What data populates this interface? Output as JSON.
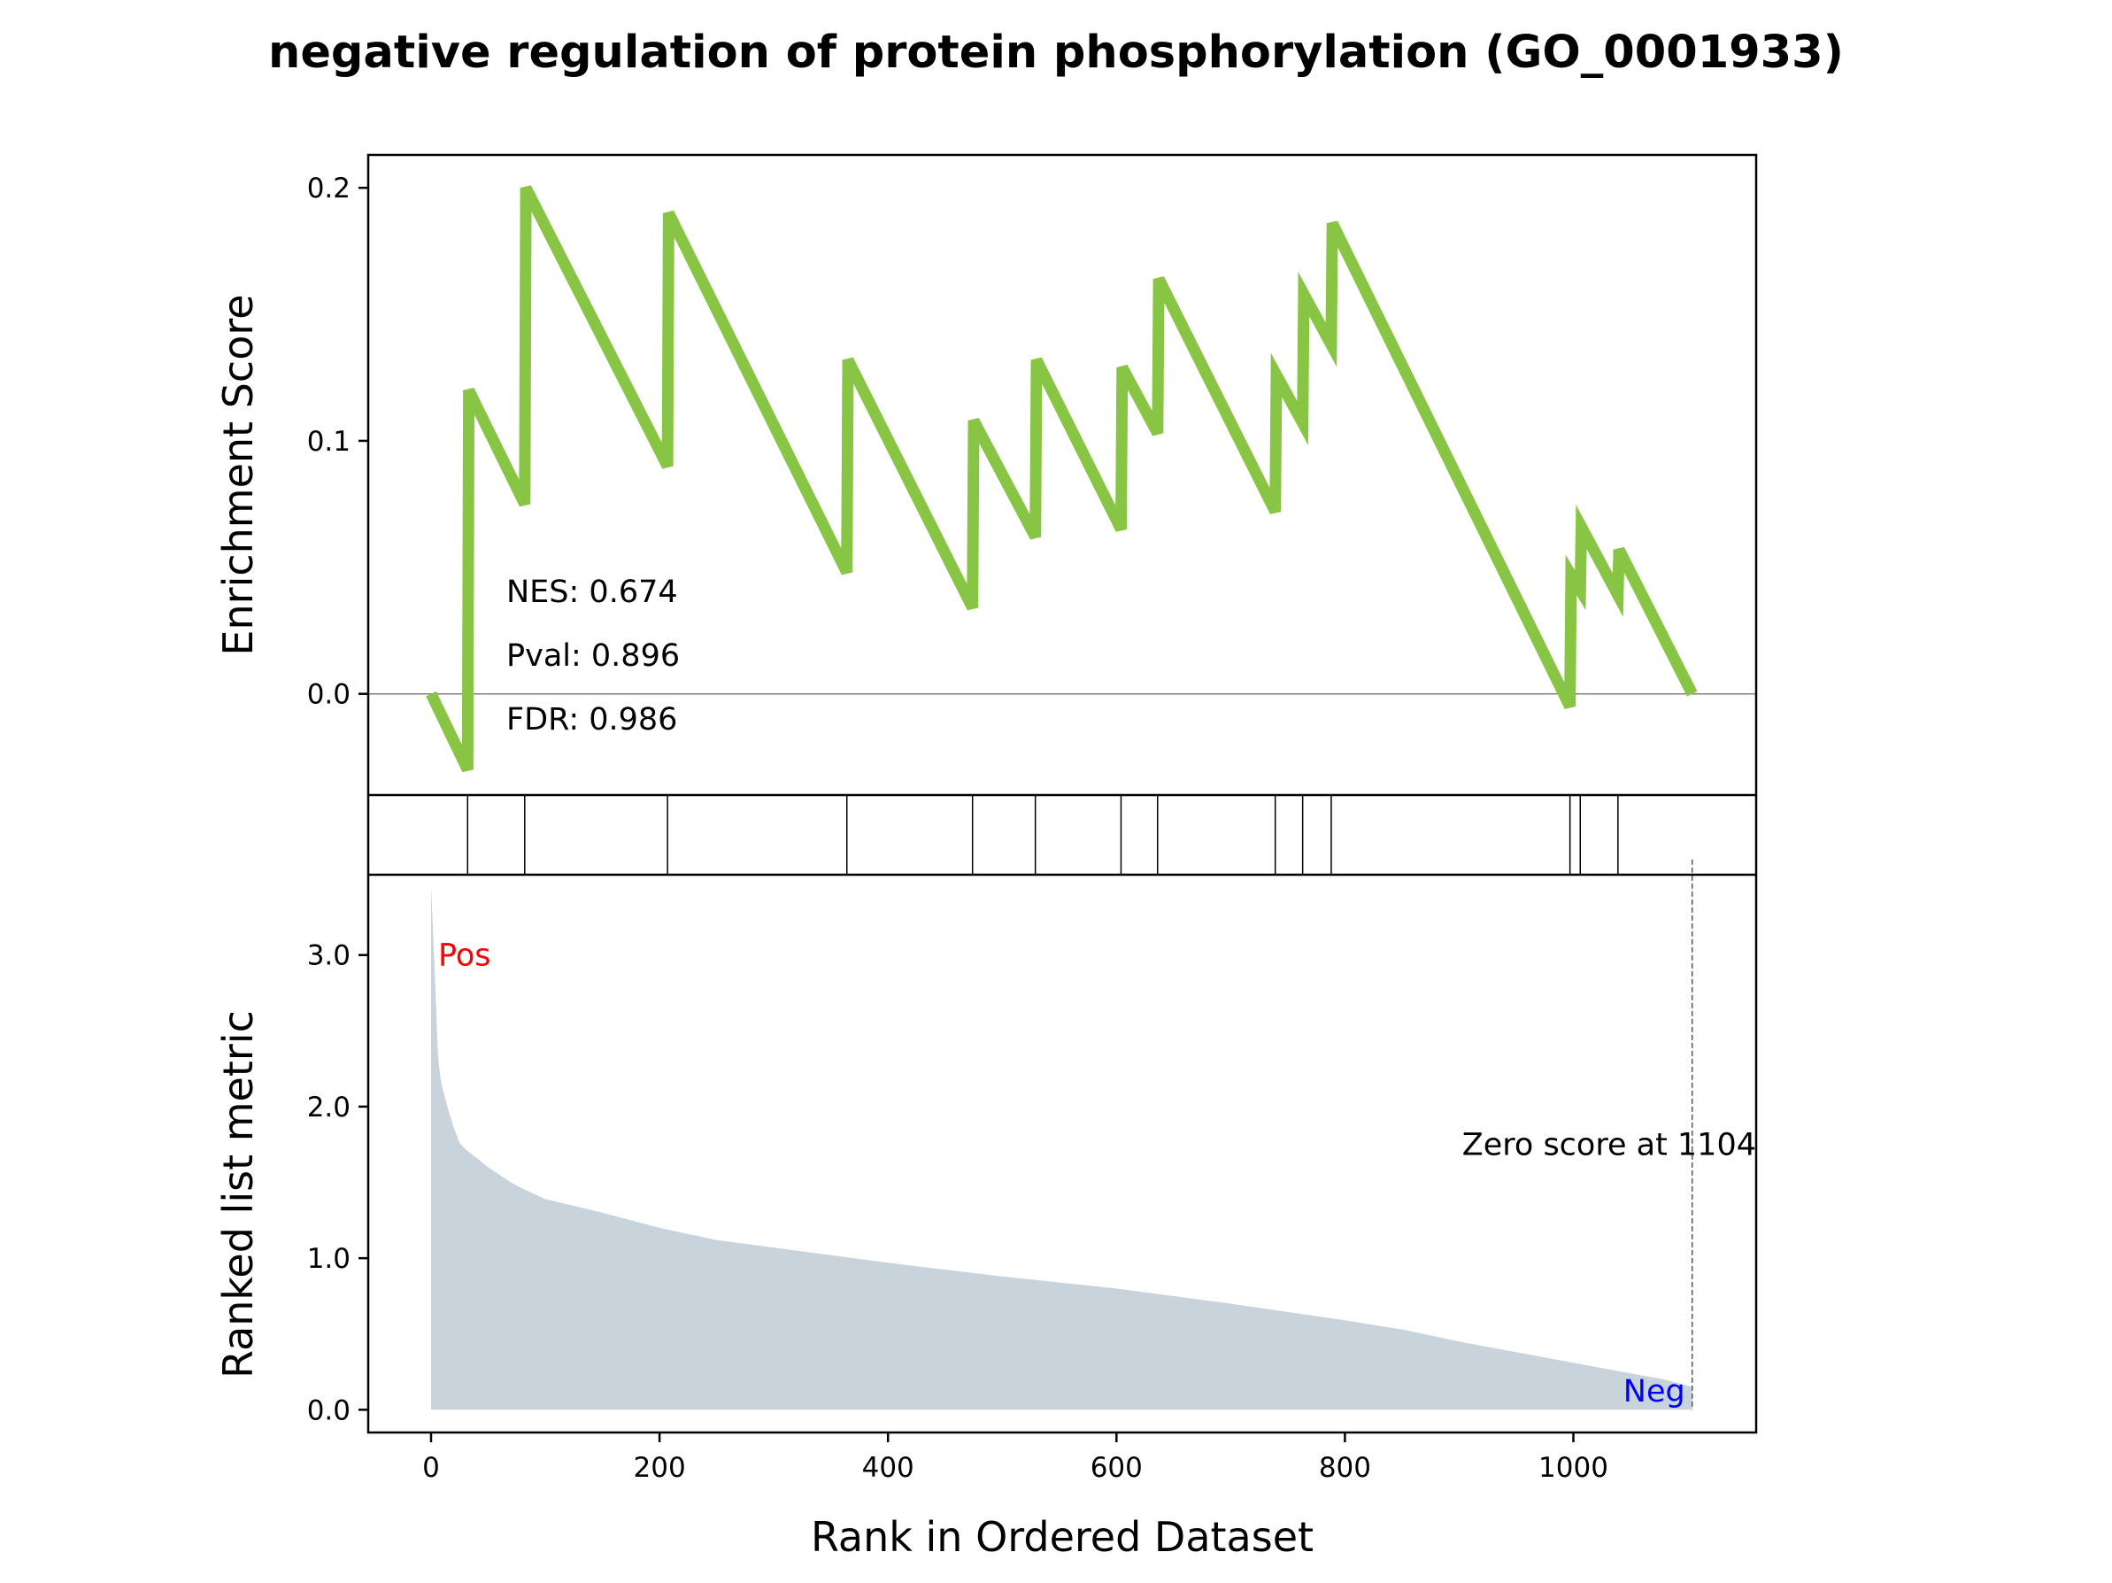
{
  "title": "negative regulation of protein phosphorylation (GO_0001933)",
  "colors": {
    "es_line": "#88C544",
    "metric_fill": "#C9D3DB",
    "pos_label": "#FF0000",
    "neg_label": "#0000FF",
    "zero_line": "#808080",
    "heat_start": "#CC0000",
    "heat_mid": "#FF0000",
    "heat_end": "#FFF5F5"
  },
  "chart_data": [
    {
      "type": "line",
      "panel": "enrichment",
      "ylabel": "Enrichment Score",
      "ylim": [
        -0.04,
        0.213
      ],
      "xlim": [
        -55,
        1160
      ],
      "yticks": [
        0.0,
        0.1,
        0.2
      ],
      "ytick_labels": [
        "0.0",
        "0.1",
        "0.2"
      ],
      "zero_line": true,
      "stats": [
        "NES: 0.674",
        "Pval: 0.896",
        "FDR: 0.986"
      ],
      "x": [
        0,
        32,
        33,
        82,
        83,
        207,
        208,
        364,
        365,
        474,
        475,
        529,
        530,
        604,
        605,
        636,
        637,
        739,
        740,
        763,
        764,
        788,
        789,
        997,
        998,
        1006,
        1007,
        1039,
        1040,
        1104
      ],
      "y": [
        0.0,
        -0.03,
        0.12,
        0.075,
        0.2,
        0.09,
        0.19,
        0.048,
        0.132,
        0.034,
        0.108,
        0.062,
        0.132,
        0.065,
        0.129,
        0.103,
        0.164,
        0.072,
        0.126,
        0.107,
        0.158,
        0.138,
        0.186,
        -0.005,
        0.047,
        0.041,
        0.066,
        0.039,
        0.057,
        0.0
      ]
    },
    {
      "type": "rug",
      "panel": "hits",
      "hit_positions": [
        32,
        82,
        207,
        364,
        474,
        529,
        604,
        636,
        739,
        763,
        788,
        997,
        1006,
        1039
      ]
    },
    {
      "type": "area",
      "panel": "ranked_metric",
      "xlabel": "Rank in Ordered Dataset",
      "ylabel": "Ranked list metric",
      "xlim": [
        -55,
        1160
      ],
      "ylim": [
        -0.15,
        3.53
      ],
      "xticks": [
        0,
        200,
        400,
        600,
        800,
        1000
      ],
      "xtick_labels": [
        "0",
        "200",
        "400",
        "600",
        "800",
        "1000"
      ],
      "yticks": [
        0.0,
        1.0,
        2.0,
        3.0
      ],
      "ytick_labels": [
        "0.0",
        "1.0",
        "2.0",
        "3.0"
      ],
      "heatmap_band_ylim_bottom": 3.63,
      "x": [
        0,
        2,
        4,
        6,
        8,
        10,
        15,
        20,
        25,
        30,
        40,
        50,
        60,
        70,
        80,
        100,
        150,
        200,
        250,
        300,
        400,
        500,
        600,
        700,
        800,
        850,
        900,
        950,
        1000,
        1050,
        1080,
        1104
      ],
      "values": [
        3.45,
        3.1,
        2.75,
        2.35,
        2.2,
        2.12,
        1.98,
        1.86,
        1.76,
        1.72,
        1.66,
        1.6,
        1.55,
        1.5,
        1.46,
        1.39,
        1.3,
        1.2,
        1.12,
        1.07,
        0.97,
        0.88,
        0.8,
        0.7,
        0.59,
        0.53,
        0.45,
        0.38,
        0.31,
        0.24,
        0.2,
        0.15
      ],
      "pos_label": "Pos",
      "neg_label": "Neg",
      "zero_score_label": "Zero score at 1104",
      "zero_score_x": 1104
    }
  ]
}
